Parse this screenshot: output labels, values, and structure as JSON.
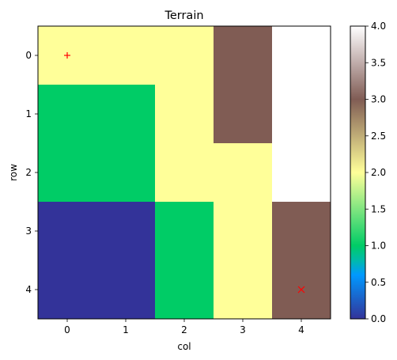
{
  "chart_data": {
    "type": "heatmap",
    "title": "Terrain",
    "xlabel": "col",
    "ylabel": "row",
    "x_ticks": [
      "0",
      "1",
      "2",
      "3",
      "4"
    ],
    "y_ticks": [
      "0",
      "1",
      "2",
      "3",
      "4"
    ],
    "values": [
      [
        2,
        2,
        2,
        3,
        4
      ],
      [
        1,
        1,
        2,
        3,
        4
      ],
      [
        1,
        1,
        2,
        2,
        4
      ],
      [
        0,
        0,
        1,
        2,
        3
      ],
      [
        0,
        0,
        1,
        2,
        3
      ]
    ],
    "colormap": "terrain",
    "color_levels": {
      "0": "#333399",
      "1": "#00cc66",
      "2": "#ffff99",
      "3": "#805c54",
      "4": "#ffffff"
    },
    "colorbar": {
      "range": [
        0.0,
        4.0
      ],
      "ticks": [
        "0.0",
        "0.5",
        "1.0",
        "1.5",
        "2.0",
        "2.5",
        "3.0",
        "3.5",
        "4.0"
      ]
    },
    "markers": [
      {
        "symbol": "+",
        "row": 0,
        "col": 0,
        "color": "#ff0000"
      },
      {
        "symbol": "x",
        "row": 4,
        "col": 4,
        "color": "#ff0000"
      }
    ],
    "grid": false,
    "legend": "none"
  }
}
